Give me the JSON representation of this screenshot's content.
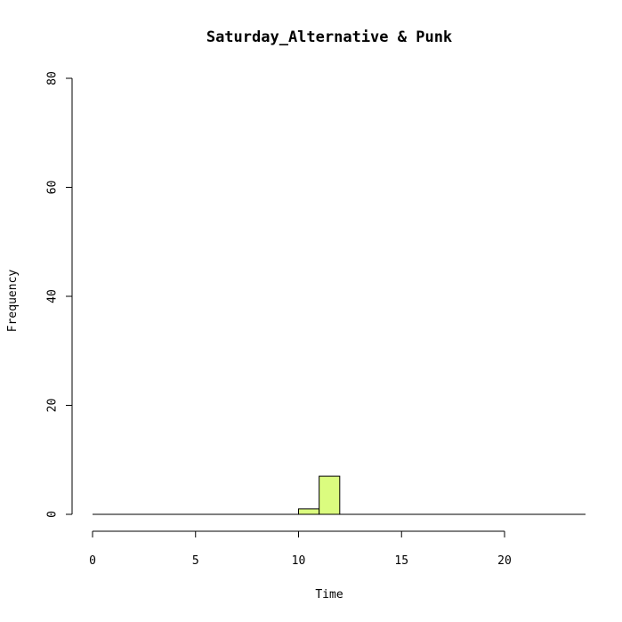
{
  "chart_data": {
    "type": "bar",
    "title": "Saturday_Alternative & Punk",
    "xlabel": "Time",
    "ylabel": "Frequency",
    "xlim": [
      0,
      24
    ],
    "ylim": [
      0,
      80
    ],
    "x_ticks": [
      0,
      5,
      10,
      15,
      20
    ],
    "y_ticks": [
      0,
      20,
      40,
      60,
      80
    ],
    "bins": [
      {
        "start": 10,
        "end": 11,
        "count": 1
      },
      {
        "start": 11,
        "end": 12,
        "count": 7
      }
    ],
    "bar_color": "#dbfc7f",
    "grid": false
  }
}
